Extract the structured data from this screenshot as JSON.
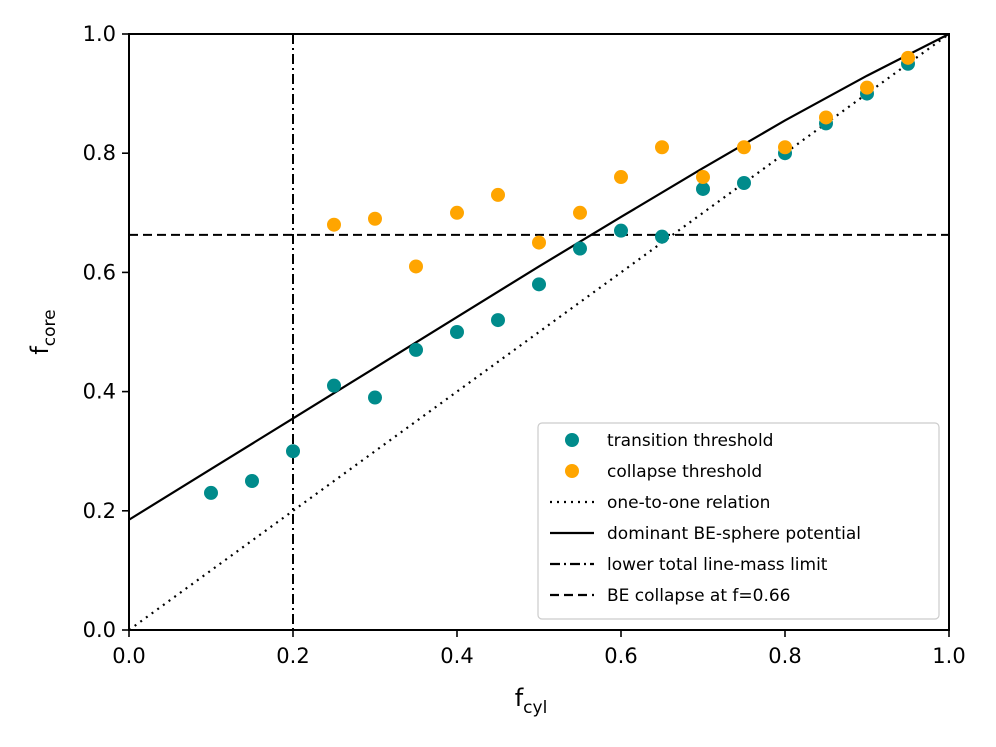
{
  "chart_data": {
    "type": "scatter",
    "title": "",
    "xlabel": {
      "main": "f",
      "sub": "cyl"
    },
    "ylabel": {
      "main": "f",
      "sub": "core"
    },
    "xlim": [
      0.0,
      1.0
    ],
    "ylim": [
      0.0,
      1.0
    ],
    "xticks": [
      "0.0",
      "0.2",
      "0.4",
      "0.6",
      "0.8",
      "1.0"
    ],
    "yticks": [
      "0.0",
      "0.2",
      "0.4",
      "0.6",
      "0.8",
      "1.0"
    ],
    "grid": false,
    "legend_position": "lower-right",
    "colors": {
      "transition": "#008b8b",
      "collapse": "#ffa500",
      "line": "#000000"
    },
    "series": [
      {
        "name": "transition threshold",
        "kind": "scatter",
        "color": "#008b8b",
        "x": [
          0.1,
          0.15,
          0.2,
          0.25,
          0.3,
          0.35,
          0.4,
          0.45,
          0.5,
          0.55,
          0.6,
          0.65,
          0.7,
          0.75,
          0.8,
          0.85,
          0.9,
          0.95
        ],
        "y": [
          0.23,
          0.25,
          0.3,
          0.41,
          0.39,
          0.47,
          0.5,
          0.52,
          0.58,
          0.64,
          0.67,
          0.66,
          0.74,
          0.75,
          0.8,
          0.85,
          0.9,
          0.95
        ]
      },
      {
        "name": "collapse threshold",
        "kind": "scatter",
        "color": "#ffa500",
        "x": [
          0.25,
          0.3,
          0.35,
          0.4,
          0.45,
          0.5,
          0.55,
          0.6,
          0.65,
          0.7,
          0.75,
          0.8,
          0.85,
          0.9,
          0.95
        ],
        "y": [
          0.68,
          0.69,
          0.61,
          0.7,
          0.73,
          0.65,
          0.7,
          0.76,
          0.81,
          0.76,
          0.81,
          0.81,
          0.86,
          0.91,
          0.96
        ]
      },
      {
        "name": "one-to-one relation",
        "kind": "line",
        "style": "dotted",
        "x": [
          0.0,
          1.0
        ],
        "y": [
          0.0,
          1.0
        ]
      },
      {
        "name": "dominant BE-sphere potential",
        "kind": "line",
        "style": "solid",
        "x": [
          0.0,
          0.1,
          0.2,
          0.3,
          0.4,
          0.5,
          0.6,
          0.7,
          0.8,
          0.9,
          1.0
        ],
        "y": [
          0.185,
          0.27,
          0.355,
          0.44,
          0.525,
          0.61,
          0.693,
          0.775,
          0.855,
          0.93,
          1.0
        ]
      },
      {
        "name": "lower total line-mass limit",
        "kind": "vline",
        "style": "dashdot",
        "x": 0.2
      },
      {
        "name": "BE collapse at f=0.66",
        "kind": "hline",
        "style": "dashed",
        "y": 0.663
      }
    ]
  }
}
